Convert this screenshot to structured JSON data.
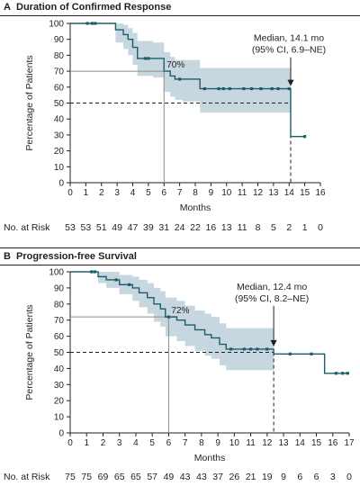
{
  "panels": [
    {
      "letter": "A",
      "title": "Duration of Confirmed Response"
    },
    {
      "letter": "B",
      "title": "Progression-free Survival"
    }
  ],
  "colors": {
    "curve": "#1b5e6a",
    "band": "#c7d7e0",
    "text": "#231f20"
  },
  "chart_data": [
    {
      "type": "line",
      "title": "Duration of Confirmed Response",
      "xlabel": "Months",
      "ylabel": "Percentage of Patients",
      "xlim": [
        0,
        16
      ],
      "ylim": [
        0,
        100
      ],
      "x_ticks": [
        "0",
        "1",
        "2",
        "3",
        "4",
        "5",
        "6",
        "7",
        "8",
        "9",
        "10",
        "11",
        "12",
        "13",
        "14",
        "15",
        "16"
      ],
      "y_ticks": [
        "0",
        "10",
        "20",
        "30",
        "40",
        "50",
        "60",
        "70",
        "80",
        "90",
        "100"
      ],
      "grid": false,
      "series": [
        {
          "x": [
            0,
            2.9,
            3.4,
            3.7,
            4.0,
            4.3,
            5.3,
            6.0,
            6.4,
            6.7,
            7.2,
            8.3,
            14.1,
            15.0
          ],
          "y": [
            100,
            96,
            93,
            90,
            85,
            78,
            78,
            70,
            67,
            65,
            65,
            59,
            29,
            29
          ],
          "ci_lower": [
            100,
            88,
            84,
            80,
            74,
            67,
            66,
            57,
            54,
            52,
            51,
            44,
            44,
            44
          ],
          "ci_upper": [
            100,
            100,
            99,
            97,
            94,
            89,
            88,
            82,
            79,
            77,
            77,
            72,
            72,
            72
          ]
        }
      ],
      "censor_marks_x": [
        1.1,
        1.4,
        1.6,
        4.8,
        5.0,
        7.0,
        8.6,
        9.5,
        9.8,
        10.2,
        11.1,
        11.6,
        12.2,
        12.9,
        13.3,
        14.0,
        15.0
      ],
      "annotations": {
        "landmark_label": "70%",
        "landmark_x": 6,
        "landmark_y": 70,
        "median_label_1": "Median, 14.1 mo",
        "median_label_2": "(95% CI, 6.9–NE)",
        "median_x": 14.1,
        "median_y": 50
      },
      "risk_label": "No. at Risk",
      "at_risk": [
        "53",
        "53",
        "51",
        "49",
        "47",
        "39",
        "31",
        "24",
        "22",
        "16",
        "13",
        "11",
        "8",
        "5",
        "2",
        "1",
        "0"
      ]
    },
    {
      "type": "line",
      "title": "Progression-free Survival",
      "xlabel": "Months",
      "ylabel": "Percentage of Patients",
      "xlim": [
        0,
        17
      ],
      "ylim": [
        0,
        100
      ],
      "x_ticks": [
        "0",
        "1",
        "2",
        "3",
        "4",
        "5",
        "6",
        "7",
        "8",
        "9",
        "10",
        "11",
        "12",
        "13",
        "14",
        "15",
        "16",
        "17"
      ],
      "y_ticks": [
        "0",
        "10",
        "20",
        "30",
        "40",
        "50",
        "60",
        "70",
        "80",
        "90",
        "100"
      ],
      "grid": false,
      "series": [
        {
          "x": [
            0,
            1.7,
            2.2,
            3.0,
            3.8,
            4.2,
            4.7,
            5.1,
            5.5,
            5.8,
            6.1,
            6.5,
            7.0,
            7.6,
            8.2,
            8.6,
            9.1,
            9.5,
            10.3,
            12.4,
            15.5,
            17.0
          ],
          "y": [
            100,
            97,
            95,
            92,
            90,
            87,
            84,
            80,
            77,
            72,
            72,
            70,
            67,
            64,
            61,
            59,
            55,
            52,
            52,
            49,
            37,
            37
          ],
          "ci_lower": [
            100,
            93,
            90,
            86,
            82,
            78,
            74,
            69,
            66,
            60,
            60,
            57,
            54,
            51,
            48,
            46,
            42,
            39,
            39,
            38,
            38,
            38
          ],
          "ci_upper": [
            100,
            100,
            100,
            98,
            97,
            95,
            93,
            90,
            88,
            84,
            84,
            82,
            79,
            76,
            74,
            72,
            68,
            65,
            65,
            61,
            61,
            61
          ]
        }
      ],
      "censor_marks_x": [
        1.3,
        1.5,
        2.8,
        3.6,
        6.0,
        9.8,
        10.6,
        11.0,
        11.4,
        12.0,
        13.4,
        14.7,
        16.2,
        16.6,
        16.9
      ],
      "annotations": {
        "landmark_label": "72%",
        "landmark_x": 6,
        "landmark_y": 72,
        "median_label_1": "Median, 12.4 mo",
        "median_label_2": "(95% CI, 8.2–NE)",
        "median_x": 12.4,
        "median_y": 50
      },
      "risk_label": "No. at Risk",
      "at_risk": [
        "75",
        "75",
        "69",
        "65",
        "65",
        "57",
        "49",
        "43",
        "43",
        "37",
        "26",
        "21",
        "19",
        "9",
        "6",
        "6",
        "3",
        "0"
      ]
    }
  ]
}
